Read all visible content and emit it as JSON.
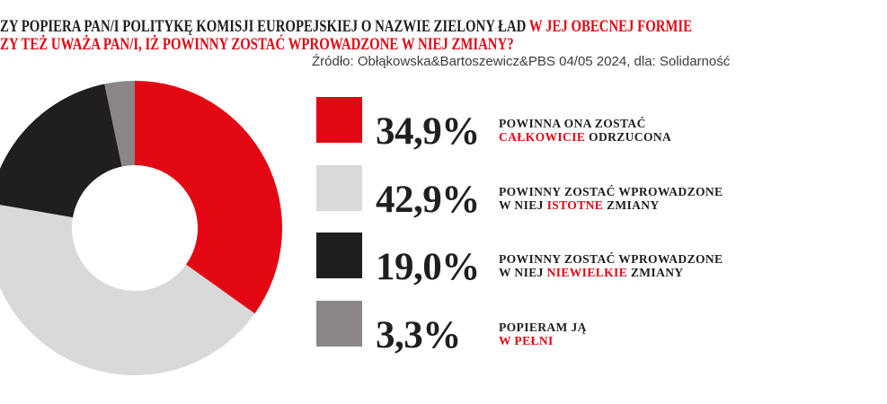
{
  "header": {
    "title_line1_black": "ZY POPIERA PAN/I POLITYKĘ KOMISJI EUROPEJSKIEJ O NAZWIE ZIELONY ŁAD",
    "title_line1_red": " W JEJ OBECNEJ FORMIE",
    "title_line2_red": "ZY TEŻ UWAŻA PAN/I, IŻ POWINNY ZOSTAĆ WPROWADZONE W NIEJ ZMIANY?",
    "source": "Źródło: Obłąkowska&Bartoszewicz&PBS 04/05 2024, dla: Solidarność"
  },
  "colors": {
    "accent_red": "#e30613",
    "text_black": "#1d1d1b",
    "source_gray": "#3c3c3b",
    "background": "#ffffff"
  },
  "chart_data": {
    "type": "pie",
    "donut": true,
    "start_angle_deg": 0,
    "direction": "clockwise",
    "title": "ZY POPIERA PAN/I POLITYKĘ KOMISJI EUROPEJSKIEJ O NAZWIE ZIELONY ŁAD W JEJ OBECNEJ FORMIE ZY TEŻ UWAŻA PAN/I, IŻ POWINNY ZOSTAĆ WPROWADZONE W NIEJ ZMIANY?",
    "source": "Źródło: Obłąkowska&Bartoszewicz&PBS 04/05 2024, dla: Solidarność",
    "values": [
      34.9,
      42.9,
      19.0,
      3.3
    ],
    "display_values": [
      "34,9%",
      "42,9%",
      "19,0%",
      "3,3%"
    ],
    "labels": [
      "POWINNA ONA ZOSTAĆ CAŁKOWICIE ODRZUCONA",
      "POWINNY ZOSTAĆ WPROWADZONE W NIEJ ISTOTNE ZMIANY",
      "POWINNY ZOSTAĆ WPROWADZONE W NIEJ NIEWIELKIE ZMIANY",
      "POPIERAM JĄ W PEŁNI"
    ],
    "colors": [
      "#e30613",
      "#d9d9d9",
      "#211e1e",
      "#8b8685"
    ],
    "legend_position": "right"
  },
  "legend": {
    "items": [
      {
        "percent": "34,9%",
        "line1": "POWINNA ONA ZOSTAĆ",
        "line2_pre": "",
        "line2_red": "CAŁKOWICIE",
        "line2_post": " ODRZUCONA"
      },
      {
        "percent": "42,9%",
        "line1": "POWINNY ZOSTAĆ WPROWADZONE",
        "line2_pre": "W NIEJ ",
        "line2_red": "ISTOTNE",
        "line2_post": " ZMIANY"
      },
      {
        "percent": "19,0%",
        "line1": "POWINNY ZOSTAĆ WPROWADZONE",
        "line2_pre": "W NIEJ ",
        "line2_red": "NIEWIELKIE",
        "line2_post": " ZMIANY"
      },
      {
        "percent": "3,3%",
        "line1": "POPIERAM JĄ",
        "line2_pre": "",
        "line2_red": "W PEŁNI",
        "line2_post": ""
      }
    ]
  }
}
